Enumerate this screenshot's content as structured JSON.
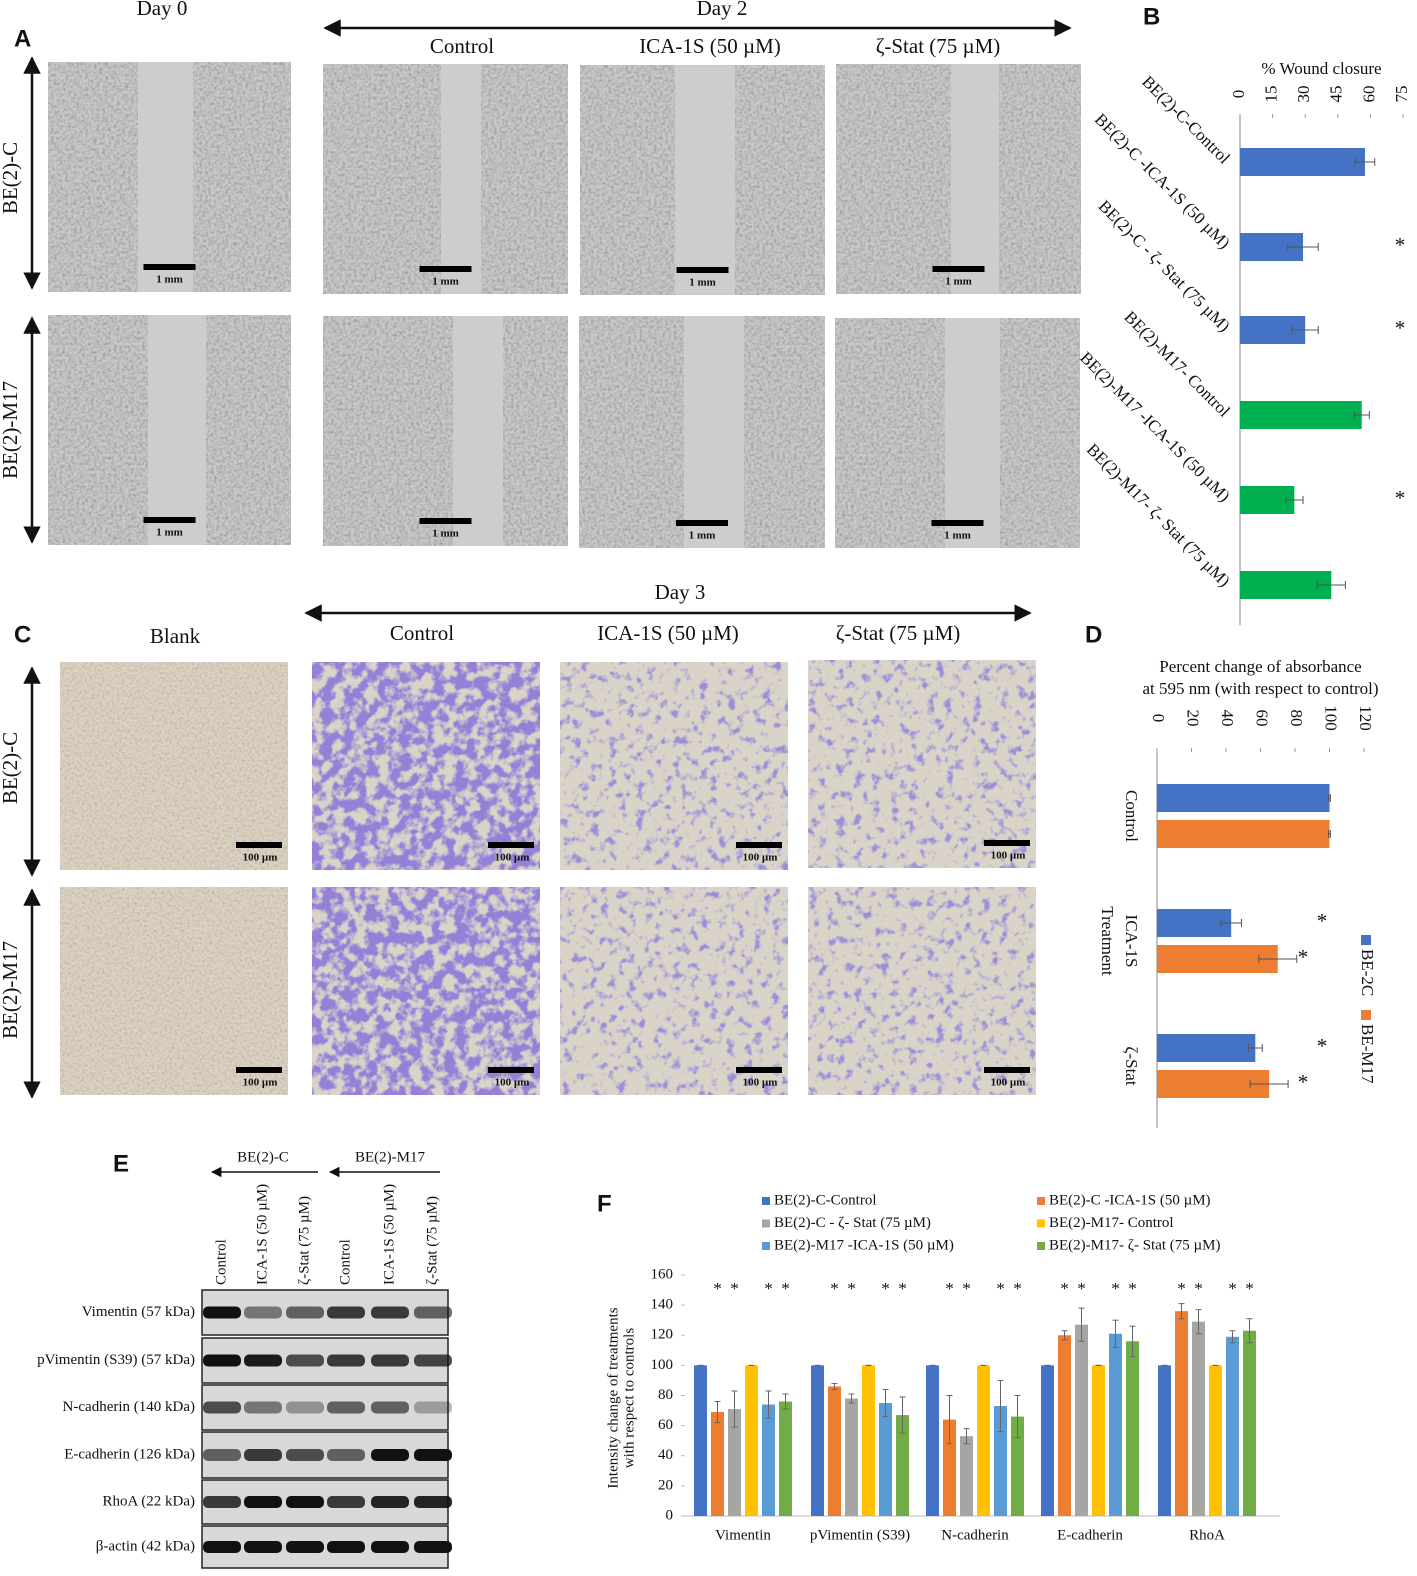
{
  "panel_labels": [
    "A",
    "B",
    "C",
    "D",
    "E",
    "F"
  ],
  "panel_a": {
    "day0": "Day 0",
    "day2": "Day 2",
    "columns": [
      "Control",
      "ICA-1S (50 µM)",
      "ζ-Stat (75 µM)"
    ],
    "rows": [
      "BE(2)-C",
      "BE(2)-M17"
    ],
    "scale_bar": "1 mm"
  },
  "panel_c": {
    "blank": "Blank",
    "day3": "Day 3",
    "columns": [
      "Control",
      "ICA-1S (50 µM)",
      "ζ-Stat (75 µM)"
    ],
    "rows": [
      "BE(2)-C",
      "BE(2)-M17"
    ],
    "scale_bar": "100 µm"
  },
  "panel_e": {
    "groups": [
      "BE(2)-C",
      "BE(2)-M17"
    ],
    "lanes": [
      "Control",
      "ICA-1S (50 µM)",
      "ζ-Stat (75 µM)"
    ],
    "proteins": [
      "Vimentin (57 kDa)",
      "pVimentin (S39) (57 kDa)",
      "N-cadherin (140 kDa)",
      "E-cadherin (126 kDa)",
      "RhoA (22 kDa)",
      "β-actin (42 kDa)"
    ]
  },
  "chart_data": [
    {
      "type": "bar",
      "orientation": "horizontal",
      "title": "% Wound closure",
      "categories": [
        "BE(2)-C-Control",
        "BE(2)-C -ICA-1S (50 µM)",
        "BE(2)-C - ζ- Stat (75 µM)",
        "BE(2)-M17- Control",
        "BE(2)-M17 -ICA-1S (50 µM)",
        "BE(2)-M17- ζ- Stat (75 µM)"
      ],
      "values": [
        57.5,
        29,
        30,
        56,
        25,
        42
      ],
      "errors": [
        4.5,
        7,
        6,
        3.5,
        4,
        6.5
      ],
      "colors": [
        "#4472c4",
        "#4472c4",
        "#4472c4",
        "#00b050",
        "#00b050",
        "#00b050"
      ],
      "markers": [
        null,
        "*",
        "*",
        null,
        "*",
        null
      ],
      "xlim": [
        0,
        75
      ],
      "xticks": [
        0,
        15,
        30,
        45,
        60,
        75
      ]
    },
    {
      "type": "bar",
      "orientation": "horizontal",
      "title": [
        "Percent change of absorbance",
        "at 595 nm (with respect to control)"
      ],
      "ylabel": "Treatment",
      "categories": [
        "Control",
        "ICA-1S",
        "ζ-Stat"
      ],
      "series": [
        {
          "name": "BE-2C",
          "color": "#4472c4",
          "values": [
            100,
            43,
            57
          ],
          "errors": [
            0.5,
            6,
            4
          ],
          "markers": [
            null,
            "*",
            "*"
          ]
        },
        {
          "name": "BE-M17",
          "color": "#ed7d31",
          "values": [
            100,
            70,
            65
          ],
          "errors": [
            0.5,
            11,
            11
          ],
          "markers": [
            null,
            "*",
            "*"
          ]
        }
      ],
      "xlim": [
        0,
        120
      ],
      "xticks": [
        0,
        20,
        40,
        60,
        80,
        100,
        120
      ],
      "legend": "right"
    },
    {
      "type": "bar",
      "orientation": "vertical",
      "ylabel": [
        "Intensity change  of treatments",
        "with respect to controls"
      ],
      "categories": [
        "Vimentin",
        "pVimentin (S39)",
        "N-cadherin",
        "E-cadherin",
        "RhoA"
      ],
      "series": [
        {
          "name": "BE(2)-C-Control",
          "color": "#4472c4",
          "values": [
            100,
            100,
            100,
            100,
            100
          ],
          "errors": [
            0,
            0,
            0,
            0,
            0
          ]
        },
        {
          "name": "BE(2)-C -ICA-1S (50 µM)",
          "color": "#ed7d31",
          "values": [
            69,
            86,
            64,
            120,
            136
          ],
          "errors": [
            7,
            2,
            16,
            3,
            5
          ],
          "markers": [
            "*",
            "*",
            "*",
            "*",
            "*"
          ]
        },
        {
          "name": "BE(2)-C - ζ- Stat (75 µM)",
          "color": "#a5a5a5",
          "values": [
            71,
            78,
            53,
            127,
            129
          ],
          "errors": [
            12,
            3,
            5,
            11,
            8
          ],
          "markers": [
            "*",
            "*",
            "*",
            "*",
            "*"
          ]
        },
        {
          "name": "BE(2)-M17- Control",
          "color": "#ffc000",
          "values": [
            100,
            100,
            100,
            100,
            100
          ],
          "errors": [
            0,
            0,
            0,
            0,
            0
          ]
        },
        {
          "name": "BE(2)-M17 -ICA-1S (50 µM)",
          "color": "#5b9bd5",
          "values": [
            74,
            75,
            73,
            121,
            119
          ],
          "errors": [
            9,
            9,
            17,
            9,
            4
          ],
          "markers": [
            "*",
            "*",
            "*",
            "*",
            "*"
          ]
        },
        {
          "name": "BE(2)-M17- ζ- Stat (75 µM)",
          "color": "#70ad47",
          "values": [
            76,
            67,
            66,
            116,
            123
          ],
          "errors": [
            5,
            12,
            14,
            10,
            8
          ],
          "markers": [
            "*",
            "*",
            "*",
            "*",
            "*"
          ]
        }
      ],
      "ylim": [
        0,
        160
      ],
      "yticks": [
        0,
        20,
        40,
        60,
        80,
        100,
        120,
        140,
        160
      ],
      "legend": "top"
    }
  ]
}
